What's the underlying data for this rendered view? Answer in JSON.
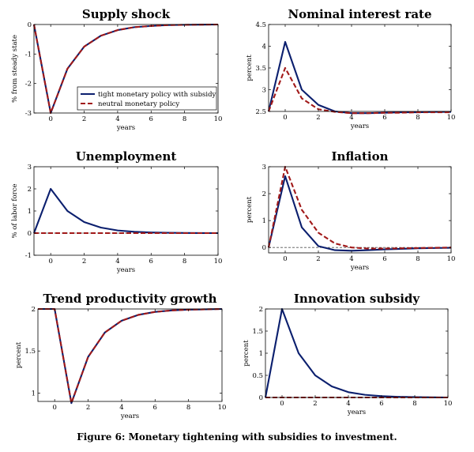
{
  "figure": {
    "caption": "Figure 6: Monetary tightening with subsidies to investment."
  },
  "legend": {
    "entries": [
      "tight monetary policy with subsidy",
      "neutral monetary policy"
    ]
  },
  "colors": {
    "tight": "#0b1f6e",
    "neutral": "#a11919",
    "zeroline": "#555555"
  },
  "chart_data": [
    {
      "id": "supply",
      "type": "line",
      "title": "Supply shock",
      "xlabel": "years",
      "ylabel": "% from steady state",
      "xlim": [
        -1,
        10
      ],
      "ylim": [
        -3,
        0
      ],
      "xticks": [
        0,
        2,
        4,
        6,
        8,
        10
      ],
      "yticks": [
        -3,
        -2,
        -1,
        0
      ],
      "x": [
        -1,
        0,
        1,
        2,
        3,
        4,
        5,
        6,
        7,
        8,
        9,
        10
      ],
      "zero_line": false,
      "series": [
        {
          "name": "tight monetary policy with subsidy",
          "values": [
            0,
            -3.0,
            -1.5,
            -0.75,
            -0.38,
            -0.19,
            -0.09,
            -0.05,
            -0.02,
            -0.01,
            -0.005,
            0
          ]
        },
        {
          "name": "neutral monetary policy",
          "values": [
            0,
            -3.0,
            -1.5,
            -0.75,
            -0.38,
            -0.19,
            -0.09,
            -0.05,
            -0.02,
            -0.01,
            -0.005,
            0
          ]
        }
      ]
    },
    {
      "id": "nominal",
      "type": "line",
      "title": "Nominal interest rate",
      "xlabel": "years",
      "ylabel": "percent",
      "xlim": [
        -1,
        10
      ],
      "ylim": [
        2.5,
        4.5
      ],
      "xticks": [
        0,
        2,
        4,
        6,
        8,
        10
      ],
      "yticks": [
        2.5,
        3,
        3.5,
        4,
        4.5
      ],
      "x": [
        -1,
        0,
        1,
        2,
        3,
        4,
        5,
        6,
        7,
        8,
        9,
        10
      ],
      "zero_line": false,
      "series": [
        {
          "name": "tight monetary policy with subsidy",
          "values": [
            2.5,
            4.1,
            3.0,
            2.65,
            2.5,
            2.46,
            2.46,
            2.47,
            2.48,
            2.48,
            2.49,
            2.49
          ]
        },
        {
          "name": "neutral monetary policy",
          "values": [
            2.5,
            3.5,
            2.8,
            2.55,
            2.49,
            2.46,
            2.46,
            2.47,
            2.47,
            2.48,
            2.48,
            2.48
          ]
        }
      ]
    },
    {
      "id": "unemployment",
      "type": "line",
      "title": "Unemployment",
      "xlabel": "years",
      "ylabel": "% of labor force",
      "xlim": [
        -1,
        10
      ],
      "ylim": [
        -1,
        3
      ],
      "xticks": [
        0,
        2,
        4,
        6,
        8,
        10
      ],
      "yticks": [
        -1,
        0,
        1,
        2,
        3
      ],
      "x": [
        -1,
        0,
        1,
        2,
        3,
        4,
        5,
        6,
        7,
        8,
        9,
        10
      ],
      "zero_line": true,
      "series": [
        {
          "name": "tight monetary policy with subsidy",
          "values": [
            0,
            2.0,
            1.0,
            0.5,
            0.25,
            0.12,
            0.06,
            0.03,
            0.015,
            0.008,
            0.004,
            0
          ]
        },
        {
          "name": "neutral monetary policy",
          "values": [
            0,
            0,
            0,
            0,
            0,
            0,
            0,
            0,
            0,
            0,
            0,
            0
          ]
        }
      ]
    },
    {
      "id": "inflation",
      "type": "line",
      "title": "Inflation",
      "xlabel": "years",
      "ylabel": "percent",
      "xlim": [
        -1,
        10
      ],
      "ylim": [
        -0.2,
        3
      ],
      "xticks": [
        0,
        2,
        4,
        6,
        8,
        10
      ],
      "yticks": [
        0,
        1,
        2,
        3
      ],
      "x": [
        -1,
        0,
        1,
        2,
        3,
        4,
        5,
        6,
        7,
        8,
        9,
        10
      ],
      "zero_line": true,
      "series": [
        {
          "name": "tight monetary policy with subsidy",
          "values": [
            0,
            2.65,
            0.75,
            0.05,
            -0.1,
            -0.12,
            -0.1,
            -0.07,
            -0.05,
            -0.03,
            -0.02,
            -0.01
          ]
        },
        {
          "name": "neutral monetary policy",
          "values": [
            0,
            3.0,
            1.4,
            0.55,
            0.15,
            0.0,
            -0.04,
            -0.04,
            -0.03,
            -0.02,
            -0.01,
            0
          ]
        }
      ]
    },
    {
      "id": "trend",
      "type": "line",
      "title": "Trend productivity growth",
      "xlabel": "years",
      "ylabel": "percent",
      "xlim": [
        -1,
        10
      ],
      "ylim": [
        0.9,
        2.0
      ],
      "xticks": [
        0,
        2,
        4,
        6,
        8,
        10
      ],
      "yticks": [
        1,
        1.5,
        2
      ],
      "x": [
        -1,
        0,
        1,
        2,
        3,
        4,
        5,
        6,
        7,
        8,
        9,
        10
      ],
      "zero_line": false,
      "series": [
        {
          "name": "tight monetary policy with subsidy",
          "values": [
            2.0,
            2.0,
            0.88,
            1.43,
            1.72,
            1.86,
            1.93,
            1.965,
            1.983,
            1.992,
            1.996,
            2.0
          ]
        },
        {
          "name": "neutral monetary policy",
          "values": [
            2.0,
            2.0,
            0.88,
            1.43,
            1.72,
            1.86,
            1.93,
            1.965,
            1.983,
            1.992,
            1.996,
            2.0
          ]
        }
      ]
    },
    {
      "id": "subsidy",
      "type": "line",
      "title": "Innovation subsidy",
      "xlabel": "years",
      "ylabel": "percent",
      "xlim": [
        -1,
        10
      ],
      "ylim": [
        0,
        2
      ],
      "xticks": [
        0,
        2,
        4,
        6,
        8,
        10
      ],
      "yticks": [
        0,
        0.5,
        1,
        1.5,
        2
      ],
      "x": [
        -1,
        0,
        1,
        2,
        3,
        4,
        5,
        6,
        7,
        8,
        9,
        10
      ],
      "zero_line": false,
      "series": [
        {
          "name": "tight monetary policy with subsidy",
          "values": [
            0,
            2.0,
            1.0,
            0.5,
            0.25,
            0.12,
            0.06,
            0.03,
            0.015,
            0.008,
            0.004,
            0
          ]
        },
        {
          "name": "neutral monetary policy",
          "values": [
            0,
            0,
            0,
            0,
            0,
            0,
            0,
            0,
            0,
            0,
            0,
            0
          ]
        }
      ]
    }
  ]
}
